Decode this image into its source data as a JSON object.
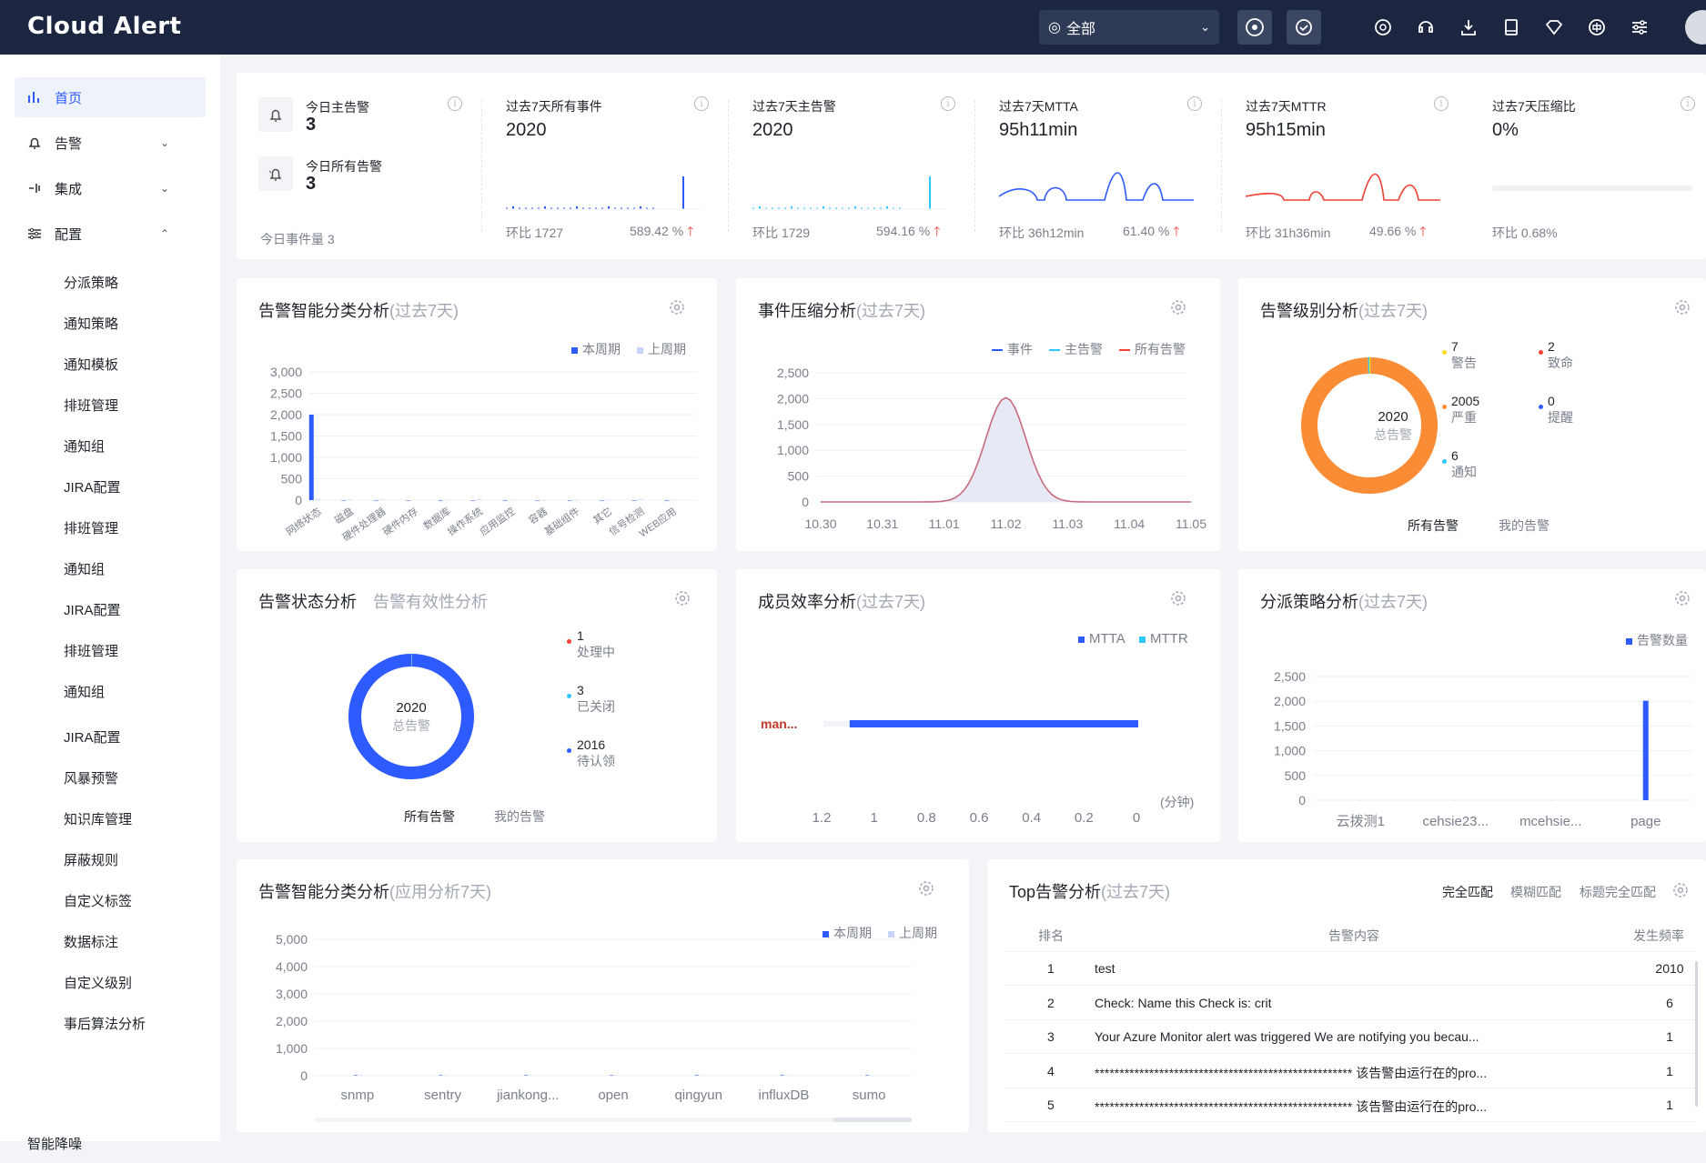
{
  "app": {
    "title": "Cloud Alert",
    "scope_label": "全部"
  },
  "colors": {
    "accent": "#2e5bff",
    "header": "#1c2641",
    "cyan": "#2ec7ff",
    "orange": "#fa8c35",
    "red": "#f04134"
  },
  "sidebar": {
    "items": [
      {
        "label": "首页",
        "icon": "chart-bar-icon",
        "active": true
      },
      {
        "label": "告警",
        "icon": "bell-icon"
      },
      {
        "label": "集成",
        "icon": "integration-icon"
      },
      {
        "label": "配置",
        "icon": "sliders-icon"
      }
    ],
    "sub": [
      "分派策略",
      "通知策略",
      "通知模板",
      "排班管理",
      "通知组",
      "JIRA配置",
      "排班管理",
      "通知组",
      "JIRA配置",
      "排班管理",
      "通知组",
      "JIRA配置",
      "风暴预警",
      "知识库管理",
      "屏蔽规则",
      "自定义标签",
      "数据标注",
      "自定义级别",
      "事后算法分析"
    ],
    "last": "智能降噪"
  },
  "stats": {
    "today_main": {
      "label": "今日主告警",
      "value": "3"
    },
    "today_all": {
      "label": "今日所有告警",
      "value": "3"
    },
    "today_events": "今日事件量 3",
    "cards": [
      {
        "title": "过去7天所有事件",
        "value": "2020",
        "compare": "环比 1727",
        "pct": "589.42 %"
      },
      {
        "title": "过去7天主告警",
        "value": "2020",
        "compare": "环比 1729",
        "pct": "594.16 %"
      },
      {
        "title": "过去7天MTTA",
        "value": "95h11min",
        "compare": "环比 36h12min",
        "pct": "61.40 %"
      },
      {
        "title": "过去7天MTTR",
        "value": "95h15min",
        "compare": "环比 31h36min",
        "pct": "49.66 %"
      },
      {
        "title": "过去7天压缩比",
        "value": "0%",
        "compare": "环比 0.68%",
        "pct": ""
      }
    ]
  },
  "panels": {
    "smart_class": {
      "title": "告警智能分类分析",
      "suffix": "(过去7天)",
      "legend": [
        "本周期",
        "上周期"
      ]
    },
    "compress": {
      "title": "事件压缩分析",
      "suffix": "(过去7天)",
      "legend": [
        "事件",
        "主告警",
        "所有告警"
      ]
    },
    "level": {
      "title": "告警级别分析",
      "suffix": "(过去7天)",
      "center_value": "2020",
      "center_label": "总告警",
      "tabs": [
        "所有告警",
        "我的告警"
      ]
    },
    "status": {
      "title": "告警状态分析",
      "tab2": "告警有效性分析",
      "center_value": "2020",
      "center_label": "总告警",
      "tabs": [
        "所有告警",
        "我的告警"
      ]
    },
    "member": {
      "title": "成员效率分析",
      "suffix": "(过去7天)",
      "legend": [
        "MTTA",
        "MTTR"
      ],
      "unit": "(分钟)",
      "member": "man..."
    },
    "dispatch": {
      "title": "分派策略分析",
      "suffix": "(过去7天)",
      "legend": [
        "告警数量"
      ]
    },
    "app_class": {
      "title": "告警智能分类分析",
      "suffix": "(应用分析7天)",
      "legend": [
        "本周期",
        "上周期"
      ]
    },
    "top": {
      "title": "Top告警分析",
      "suffix": "(过去7天)",
      "modes": [
        "完全匹配",
        "模糊匹配",
        "标题完全匹配"
      ],
      "columns": [
        "排名",
        "告警内容",
        "发生频率"
      ],
      "rows": [
        {
          "rank": "1",
          "content": "test",
          "freq": "2010"
        },
        {
          "rank": "2",
          "content": "Check: Name this Check is: crit",
          "freq": "6"
        },
        {
          "rank": "3",
          "content": "Your Azure Monitor alert was triggered We are notifying you becau...",
          "freq": "1"
        },
        {
          "rank": "4",
          "content": "**************************************************** 该告警由运行在的pro...",
          "freq": "1"
        },
        {
          "rank": "5",
          "content": "**************************************************** 该告警由运行在的pro...",
          "freq": "1"
        }
      ]
    }
  },
  "chart_data": [
    {
      "type": "bar",
      "title": "告警智能分类分析",
      "categories": [
        "网络状态",
        "磁盘",
        "硬件处理器",
        "硬件内存",
        "数据库",
        "操作系统",
        "应用监控",
        "容器",
        "基础组件",
        "其它",
        "信号检测",
        "WEB应用"
      ],
      "series": [
        {
          "name": "本周期",
          "values": [
            2000,
            0,
            0,
            0,
            0,
            0,
            0,
            0,
            0,
            0,
            0,
            0
          ]
        },
        {
          "name": "上周期",
          "values": [
            30,
            20,
            15,
            10,
            10,
            25,
            5,
            5,
            5,
            15,
            25,
            10
          ]
        }
      ],
      "yticks": [
        "3,000",
        "2,500",
        "2,000",
        "1,500",
        "1,000",
        "500",
        "0"
      ],
      "ylim": [
        0,
        3000
      ]
    },
    {
      "type": "area",
      "title": "事件压缩分析",
      "x": [
        "10.30",
        "10.31",
        "11.01",
        "11.02",
        "11.03",
        "11.04",
        "11.05"
      ],
      "series": [
        {
          "name": "事件",
          "values": [
            0,
            0,
            0,
            2020,
            0,
            0,
            0
          ]
        },
        {
          "name": "主告警",
          "values": [
            0,
            0,
            0,
            2020,
            0,
            0,
            0
          ]
        },
        {
          "name": "所有告警",
          "values": [
            0,
            0,
            0,
            2020,
            0,
            0,
            0
          ]
        }
      ],
      "yticks": [
        "2,500",
        "2,000",
        "1,500",
        "1,000",
        "500",
        "0"
      ],
      "ylim": [
        0,
        2500
      ]
    },
    {
      "type": "pie",
      "title": "告警级别分析",
      "slices": [
        {
          "label": "警告",
          "value": 7,
          "color": "#fadb14"
        },
        {
          "label": "致命",
          "value": 2,
          "color": "#f04134"
        },
        {
          "label": "严重",
          "value": 2005,
          "color": "#fa8c35"
        },
        {
          "label": "提醒",
          "value": 0,
          "color": "#2e5bff"
        },
        {
          "label": "通知",
          "value": 6,
          "color": "#2ec7ff"
        }
      ]
    },
    {
      "type": "pie",
      "title": "告警状态分析",
      "slices": [
        {
          "label": "处理中",
          "value": 1,
          "color": "#f04134"
        },
        {
          "label": "已关闭",
          "value": 3,
          "color": "#2ec7ff"
        },
        {
          "label": "待认领",
          "value": 2016,
          "color": "#2e5bff"
        }
      ]
    },
    {
      "type": "bar",
      "title": "成员效率分析",
      "categories": [
        "man..."
      ],
      "series": [
        {
          "name": "MTTA",
          "values": [
            1.1
          ]
        },
        {
          "name": "MTTR",
          "values": [
            0.02
          ]
        }
      ],
      "xticks": [
        "1.2",
        "1",
        "0.8",
        "0.6",
        "0.4",
        "0.2",
        "0"
      ],
      "xlim": [
        1.2,
        0
      ]
    },
    {
      "type": "bar",
      "title": "分派策略分析",
      "categories": [
        "云拨测1",
        "cehsie23...",
        "mcehsie...",
        "page"
      ],
      "series": [
        {
          "name": "告警数量",
          "values": [
            3,
            2,
            2,
            2010
          ]
        }
      ],
      "yticks": [
        "2,500",
        "2,000",
        "1,500",
        "1,000",
        "500",
        "0"
      ],
      "ylim": [
        0,
        2500
      ]
    },
    {
      "type": "bar",
      "title": "告警智能分类分析",
      "categories": [
        "snmp",
        "sentry",
        "jiankong...",
        "open",
        "qingyun",
        "influxDB",
        "sumo"
      ],
      "series": [
        {
          "name": "本周期",
          "values": [
            0,
            0,
            0,
            0,
            0,
            0,
            0
          ]
        },
        {
          "name": "上周期",
          "values": [
            0,
            0,
            0,
            0,
            0,
            0,
            0
          ]
        }
      ],
      "yticks": [
        "5,000",
        "4,000",
        "3,000",
        "2,000",
        "1,000",
        "0"
      ],
      "ylim": [
        0,
        5000
      ]
    }
  ]
}
